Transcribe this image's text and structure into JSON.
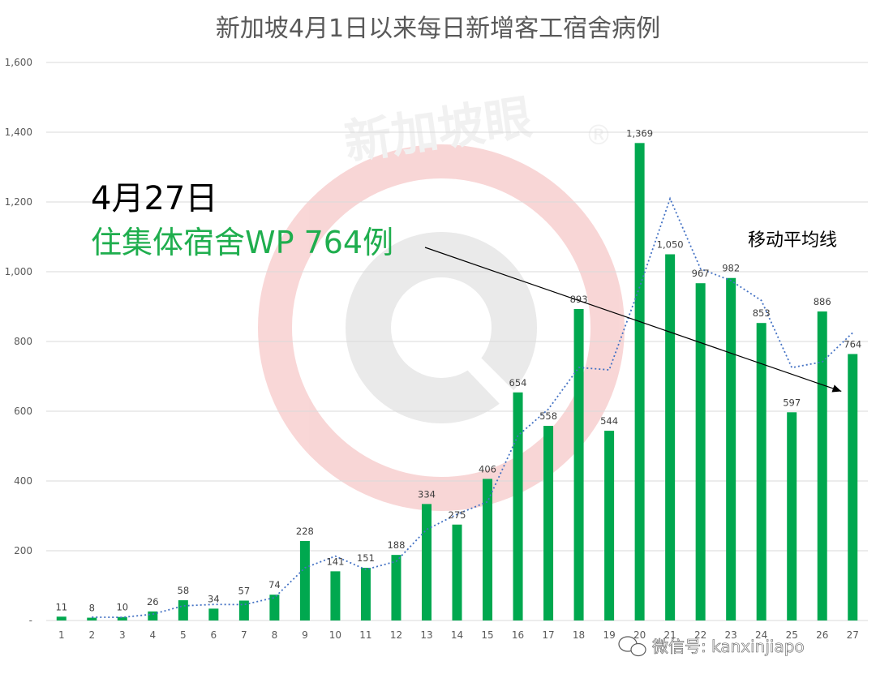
{
  "chart_data": {
    "type": "bar",
    "title": "新加坡4月1日以来每日新增客工宿舍病例",
    "categories": [
      "1",
      "2",
      "3",
      "4",
      "5",
      "6",
      "7",
      "8",
      "9",
      "10",
      "11",
      "12",
      "13",
      "14",
      "15",
      "16",
      "17",
      "18",
      "19",
      "20",
      "21",
      "22",
      "23",
      "24",
      "25",
      "26",
      "27"
    ],
    "values": [
      11,
      8,
      10,
      26,
      58,
      34,
      57,
      74,
      228,
      141,
      151,
      188,
      334,
      275,
      406,
      654,
      558,
      893,
      544,
      1369,
      1050,
      967,
      982,
      853,
      597,
      886,
      764
    ],
    "data_labels": [
      "11",
      "8",
      "10",
      "26",
      "58",
      "34",
      "57",
      "74",
      "228",
      "141",
      "151",
      "188",
      "334",
      "275",
      "406",
      "654",
      "558",
      "893",
      "544",
      "1,369",
      "1,050",
      "967",
      "982",
      "853",
      "597",
      "886",
      "764"
    ],
    "y_ticks": [
      0,
      200,
      400,
      600,
      800,
      1000,
      1200,
      1400,
      1600
    ],
    "y_tick_labels": [
      "-",
      "200",
      "400",
      "600",
      "800",
      "1,000",
      "1,200",
      "1,400",
      "1,600"
    ],
    "ylim": [
      0,
      1600
    ],
    "grid": true,
    "bar_color": "#00a84f",
    "moving_average": {
      "label": "移动平均线",
      "style": "dotted",
      "color": "#4472c4",
      "values": [
        null,
        9.5,
        9,
        18,
        42,
        46,
        45.5,
        65.5,
        151,
        184.5,
        146,
        169.5,
        261,
        304.5,
        340.5,
        530,
        606,
        725.5,
        718.5,
        956.5,
        1209.5,
        1008.5,
        974.5,
        917.5,
        725,
        741.5,
        825
      ]
    },
    "annotation": {
      "date": "4月27日",
      "text": "住集体宿舍WP 764例",
      "arrow_target_category": "27",
      "text_color": "#1fae4e"
    }
  },
  "watermark": {
    "brand": "新加坡眼",
    "mark": "®",
    "credit": "微信号: kanxinjiapo",
    "color": "#f4b6b6"
  }
}
